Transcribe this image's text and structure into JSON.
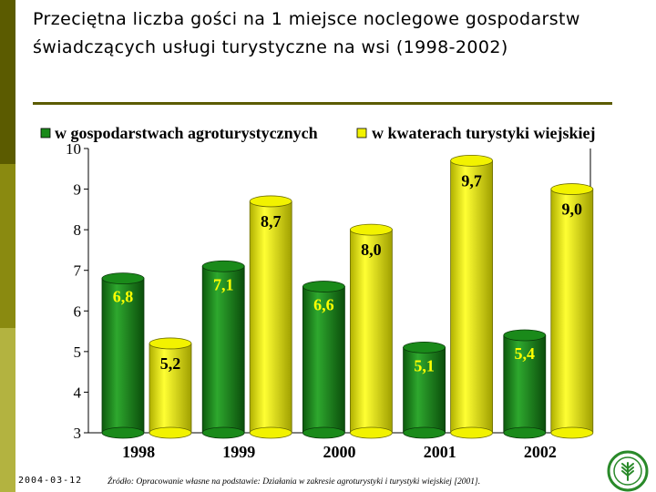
{
  "slide": {
    "title": "Przeciętna liczba gości na 1 miejsce noclegowe gospodarstw świadczących usługi turystyczne na wsi (1998-2002)",
    "date": "2004-03-12",
    "source": "Źródło: Opracowanie własne na podstawie: Działania w zakresie agroturystyki i turystyki wiejskiej [2001]."
  },
  "colors": {
    "green": "#1a8a1a",
    "yellow": "#f2f200",
    "sidebar": [
      "#5b5b00",
      "#8a8a10",
      "#b3b340",
      "#d2d27a"
    ]
  },
  "chart_data": {
    "type": "bar",
    "categories": [
      "1998",
      "1999",
      "2000",
      "2001",
      "2002"
    ],
    "series": [
      {
        "name": "w gospodarstwach agroturystycznych",
        "values": [
          6.8,
          7.1,
          6.6,
          5.1,
          5.4
        ],
        "labels": [
          "6,8",
          "7,1",
          "6,6",
          "5,1",
          "5,4"
        ]
      },
      {
        "name": "w kwaterach turystyki wiejskiej",
        "values": [
          5.2,
          8.7,
          8.0,
          9.7,
          9.0
        ],
        "labels": [
          "5,2",
          "8,7",
          "8,0",
          "9,7",
          "9,0"
        ]
      }
    ],
    "ylim": [
      3,
      10
    ],
    "yticks": [
      "3",
      "4",
      "5",
      "6",
      "7",
      "8",
      "9",
      "10"
    ],
    "legend_position": "top",
    "grid": false,
    "style": "3d-cylinder"
  }
}
